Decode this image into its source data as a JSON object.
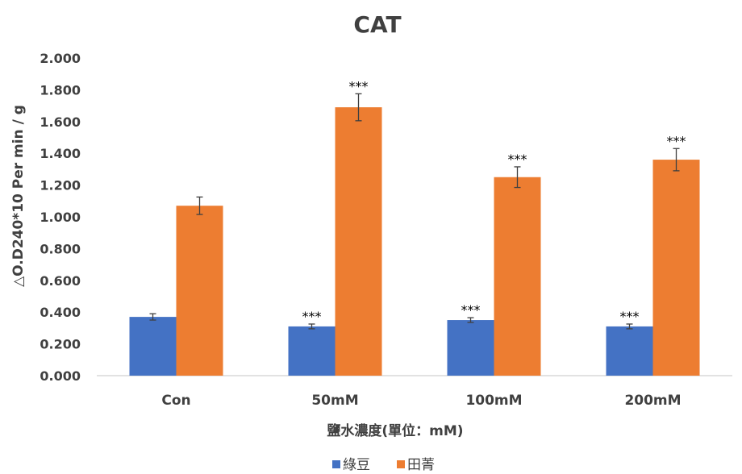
{
  "chart_data": {
    "type": "bar",
    "title": "CAT",
    "xlabel": "鹽水濃度(單位：mM)",
    "ylabel": "△O.D240*10 Per min / g",
    "ylim": [
      0,
      2.0
    ],
    "yticks": [
      "0.000",
      "0.200",
      "0.400",
      "0.600",
      "0.800",
      "1.000",
      "1.200",
      "1.400",
      "1.600",
      "1.800",
      "2.000"
    ],
    "categories": [
      "Con",
      "50mM",
      "100mM",
      "200mM"
    ],
    "series": [
      {
        "name": "綠豆",
        "color": "#4472C4",
        "values": [
          0.37,
          0.31,
          0.35,
          0.31
        ],
        "errors": [
          0.02,
          0.015,
          0.015,
          0.015
        ],
        "significance": [
          "",
          "***",
          "***",
          "***"
        ]
      },
      {
        "name": "田菁",
        "color": "#ED7D31",
        "values": [
          1.07,
          1.69,
          1.25,
          1.36
        ],
        "errors": [
          0.055,
          0.085,
          0.065,
          0.07
        ],
        "significance": [
          "",
          "***",
          "***",
          "***"
        ]
      }
    ],
    "grid": false,
    "legend": "bottom"
  }
}
